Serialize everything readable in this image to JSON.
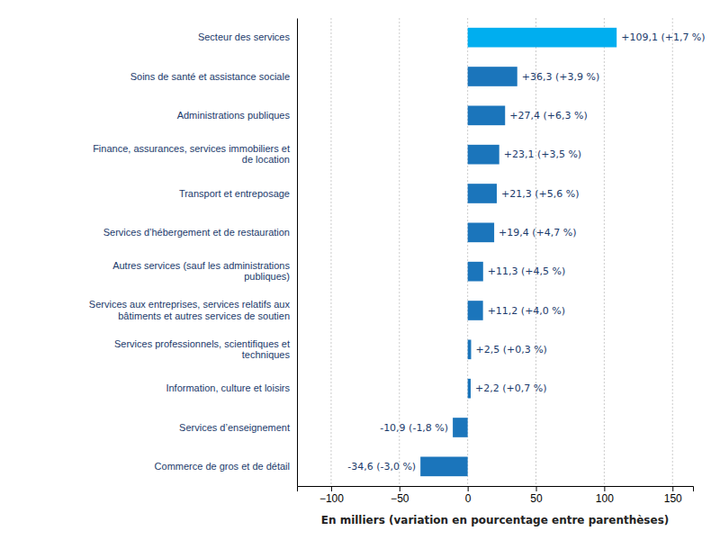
{
  "chart_data": {
    "type": "bar",
    "orientation": "horizontal",
    "categories": [
      "Secteur des services",
      "Soins de santé et assistance sociale",
      "Administrations publiques",
      "Finance, assurances, services immobiliers et\nde location",
      "Transport et entreposage",
      "Services d’hébergement et de restauration",
      "Autres services (sauf les administrations\npubliques)",
      "Services aux entreprises, services relatifs aux\nbâtiments et autres services de soutien",
      "Services professionnels, scientifiques et\ntechniques",
      "Information, culture et loisirs",
      "Services d’enseignement",
      "Commerce de gros et de détail"
    ],
    "values": [
      109.1,
      36.3,
      27.4,
      23.1,
      21.3,
      19.4,
      11.3,
      11.2,
      2.5,
      2.2,
      -10.9,
      -34.6
    ],
    "value_labels": [
      "+109,1 (+1,7 %)",
      "+36,3 (+3,9 %)",
      "+27,4 (+6,3 %)",
      "+23,1 (+3,5 %)",
      "+21,3 (+5,6 %)",
      "+19,4 (+4,7 %)",
      "+11,3 (+4,5 %)",
      "+11,2 (+4,0 %)",
      "+2,5 (+0,3 %)",
      "+2,2 (+0,7 %)",
      "-10,9 (-1,8 %)",
      "-34,6 (-3,0 %)"
    ],
    "data_labels": true,
    "colors": [
      "#00AEEF",
      "#1B75BB",
      "#1B75BB",
      "#1B75BB",
      "#1B75BB",
      "#1B75BB",
      "#1B75BB",
      "#1B75BB",
      "#1B75BB",
      "#1B75BB",
      "#1B75BB",
      "#1B75BB"
    ],
    "xlabel": "En milliers (variation en pourcentage entre parenthèses)",
    "xlim": [
      -125,
      165
    ],
    "xticks": [
      -100,
      -50,
      0,
      50,
      100,
      150
    ],
    "grid": true
  }
}
